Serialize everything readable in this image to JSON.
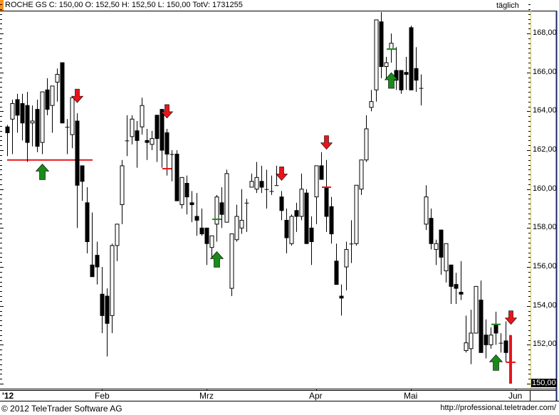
{
  "header": {
    "text": "ROCHE GS C: 150,00 O: 152,50 H: 152,50 L: 150,00 TotV: 1731255",
    "period": "täglich"
  },
  "footer": {
    "copyright": "© 2012 TeleTrader Software AG",
    "url": "http://professional.teletrader.com/"
  },
  "colors": {
    "accent": "#f7941d",
    "up_arrow": "#1a8a1a",
    "down_arrow": "#e8141c",
    "support_line": "#e8141c",
    "axis_line": "#d8c860",
    "frame": "#1a2a6a"
  },
  "chart_data": {
    "type": "candlestick",
    "title": "ROCHE GS",
    "ylim": [
      150,
      169.5
    ],
    "y_ticks": [
      "168,00",
      "166,00",
      "164,00",
      "162,00",
      "160,00",
      "158,00",
      "156,00",
      "154,00",
      "152,00",
      "150,00"
    ],
    "y_tick_values": [
      168,
      166,
      164,
      162,
      160,
      158,
      156,
      154,
      152,
      150
    ],
    "highlighted_price": "150,00",
    "x_ticks": [
      "'12",
      "Feb",
      "Mrz",
      "Apr",
      "Mai",
      "Jun"
    ],
    "grid": false,
    "ohlc": [
      [
        163.2,
        163.3,
        161.7,
        162.9
      ],
      [
        163.6,
        164.6,
        161.8,
        164.4
      ],
      [
        164.6,
        164.9,
        162.9,
        163.8
      ],
      [
        164.4,
        164.9,
        162.5,
        163.4
      ],
      [
        164.3,
        165.0,
        161.4,
        162.4
      ],
      [
        163.4,
        164.3,
        162.2,
        163.5
      ],
      [
        164.1,
        164.6,
        161.9,
        162.2
      ],
      [
        162.4,
        165.0,
        161.8,
        165.0
      ],
      [
        165.1,
        165.7,
        163.8,
        164.1
      ],
      [
        164.3,
        165.3,
        162.9,
        165.3
      ],
      [
        165.5,
        166.2,
        164.5,
        165.9
      ],
      [
        166.5,
        166.5,
        163.4,
        163.4
      ],
      [
        163.2,
        163.6,
        161.8,
        163.2
      ],
      [
        162.8,
        164.7,
        162.1,
        164.7
      ],
      [
        163.5,
        163.9,
        158.0,
        160.2
      ],
      [
        161.2,
        161.2,
        159.4,
        160.4
      ],
      [
        159.3,
        160.1,
        156.7,
        157.3
      ],
      [
        156.1,
        158.8,
        155.5,
        155.5
      ],
      [
        156.6,
        157.3,
        155.1,
        156.0
      ],
      [
        154.6,
        156.0,
        152.6,
        153.5
      ],
      [
        154.5,
        154.9,
        151.4,
        153.1
      ],
      [
        153.5,
        157.2,
        152.6,
        157.1
      ],
      [
        157.1,
        158.2,
        156.3,
        158.2
      ],
      [
        159.2,
        161.5,
        158.2,
        161.2
      ],
      [
        162.5,
        163.8,
        161.7,
        162.5
      ],
      [
        162.7,
        163.8,
        162.3,
        163.6
      ],
      [
        163.0,
        163.5,
        161.1,
        162.5
      ],
      [
        163.2,
        164.7,
        162.8,
        164.3
      ],
      [
        162.5,
        163.1,
        161.5,
        162.4
      ],
      [
        162.3,
        163.0,
        162.0,
        162.6
      ],
      [
        163.8,
        163.8,
        161.4,
        162.6
      ],
      [
        164.1,
        164.1,
        161.1,
        162.0
      ],
      [
        162.9,
        163.1,
        160.7,
        161.8
      ],
      [
        161.8,
        162.0,
        160.4,
        161.8
      ],
      [
        161.8,
        162.0,
        159.4,
        159.4
      ],
      [
        159.2,
        160.6,
        159.0,
        160.6
      ],
      [
        160.3,
        160.7,
        158.7,
        159.6
      ],
      [
        159.3,
        159.9,
        158.3,
        159.2
      ],
      [
        158.6,
        159.8,
        157.6,
        158.4
      ],
      [
        158.0,
        159.0,
        157.6,
        157.7
      ],
      [
        158.0,
        158.0,
        156.1,
        157.2
      ],
      [
        157.0,
        157.6,
        156.5,
        157.6
      ],
      [
        158.2,
        159.7,
        157.3,
        159.6
      ],
      [
        159.3,
        160.1,
        158.0,
        158.7
      ],
      [
        158.3,
        161.0,
        158.3,
        160.8
      ],
      [
        154.9,
        157.7,
        154.5,
        157.7
      ],
      [
        157.4,
        159.2,
        157.3,
        158.6
      ],
      [
        158.0,
        160.0,
        157.7,
        158.4
      ],
      [
        159.3,
        159.5,
        157.8,
        159.3
      ],
      [
        160.1,
        160.8,
        160.1,
        160.4
      ],
      [
        160.0,
        161.4,
        159.8,
        160.6
      ],
      [
        160.4,
        161.2,
        159.8,
        160.1
      ],
      [
        160.0,
        161.0,
        159.0,
        160.0
      ],
      [
        159.9,
        160.7,
        159.7,
        159.9
      ],
      [
        160.2,
        161.2,
        160.2,
        160.2
      ],
      [
        159.6,
        159.9,
        158.4,
        158.9
      ],
      [
        158.4,
        159.0,
        156.7,
        157.5
      ],
      [
        157.2,
        158.7,
        157.1,
        158.6
      ],
      [
        158.9,
        159.3,
        157.8,
        158.6
      ],
      [
        158.6,
        160.8,
        158.4,
        160.0
      ],
      [
        159.8,
        160.0,
        157.2,
        157.2
      ],
      [
        158.0,
        158.6,
        156.1,
        157.3
      ],
      [
        159.6,
        161.2,
        158.2,
        161.2
      ],
      [
        161.2,
        161.9,
        160.5,
        160.5
      ],
      [
        160.1,
        161.5,
        157.8,
        158.6
      ],
      [
        159.1,
        159.6,
        157.2,
        157.7
      ],
      [
        156.3,
        157.2,
        155.1,
        155.1
      ],
      [
        154.5,
        155.1,
        153.5,
        154.4
      ],
      [
        156.0,
        157.3,
        154.8,
        156.9
      ],
      [
        157.2,
        158.4,
        156.2,
        157.2
      ],
      [
        157.2,
        160.2,
        157.1,
        160.2
      ],
      [
        160.0,
        161.5,
        159.7,
        161.5
      ],
      [
        161.5,
        163.8,
        161.4,
        163.1
      ],
      [
        164.2,
        165.1,
        164.0,
        164.5
      ],
      [
        165.1,
        168.7,
        164.5,
        168.7
      ],
      [
        168.6,
        169.1,
        165.7,
        166.3
      ],
      [
        166.3,
        166.8,
        165.7,
        166.5
      ],
      [
        167.2,
        168.0,
        166.5,
        167.5
      ],
      [
        166.1,
        167.3,
        165.1,
        165.6
      ],
      [
        166.1,
        166.1,
        164.9,
        165.1
      ],
      [
        166.0,
        166.8,
        165.1,
        165.9
      ],
      [
        168.3,
        168.4,
        165.1,
        165.1
      ],
      [
        166.2,
        167.3,
        165.0,
        165.6
      ],
      [
        165.2,
        165.9,
        164.3,
        165.2
      ],
      [
        158.2,
        160.2,
        157.9,
        159.6
      ],
      [
        158.5,
        159.0,
        156.9,
        157.2
      ],
      [
        156.9,
        157.4,
        156.1,
        157.2
      ],
      [
        157.9,
        157.9,
        155.6,
        156.5
      ],
      [
        155.8,
        157.2,
        155.2,
        157.2
      ],
      [
        156.1,
        156.1,
        154.1,
        155.0
      ],
      [
        155.1,
        155.7,
        154.1,
        154.9
      ],
      [
        154.7,
        156.3,
        154.3,
        154.6
      ],
      [
        151.7,
        153.5,
        151.6,
        152.1
      ],
      [
        151.8,
        153.8,
        151.0,
        152.6
      ],
      [
        152.6,
        155.0,
        152.6,
        155.0
      ],
      [
        154.3,
        155.3,
        151.6,
        151.6
      ],
      [
        152.5,
        153.3,
        151.3,
        152.0
      ],
      [
        152.0,
        152.9,
        151.8,
        152.5
      ],
      [
        153.0,
        153.7,
        152.0,
        152.6
      ],
      [
        152.1,
        152.6,
        151.6,
        152.1
      ],
      [
        152.2,
        153.2,
        151.1,
        151.6
      ],
      [
        152.5,
        152.5,
        150.0,
        150.0
      ]
    ],
    "last_candle_color": "#e8141c",
    "down_arrows_at_candle": [
      14,
      32,
      55,
      64,
      101
    ],
    "up_arrows_at_candle": [
      7,
      42,
      77,
      98
    ],
    "marker_ticks": [
      {
        "candle": 42,
        "price": 158.45,
        "color": "#1a8a1a"
      },
      {
        "candle": 77,
        "price": 167.2,
        "color": "#1a8a1a"
      },
      {
        "candle": 98,
        "price": 153.05,
        "color": "#1a8a1a"
      },
      {
        "candle": 64,
        "price": 160.1,
        "color": "#e8141c"
      },
      {
        "candle": 32,
        "price": 161.05,
        "color": "#e8141c"
      },
      {
        "candle": 101,
        "price": 151.1,
        "color": "#e8141c"
      }
    ],
    "support_line": {
      "price": 161.5,
      "from_candle": 0,
      "to_candle": 17,
      "color": "#e8141c"
    }
  }
}
